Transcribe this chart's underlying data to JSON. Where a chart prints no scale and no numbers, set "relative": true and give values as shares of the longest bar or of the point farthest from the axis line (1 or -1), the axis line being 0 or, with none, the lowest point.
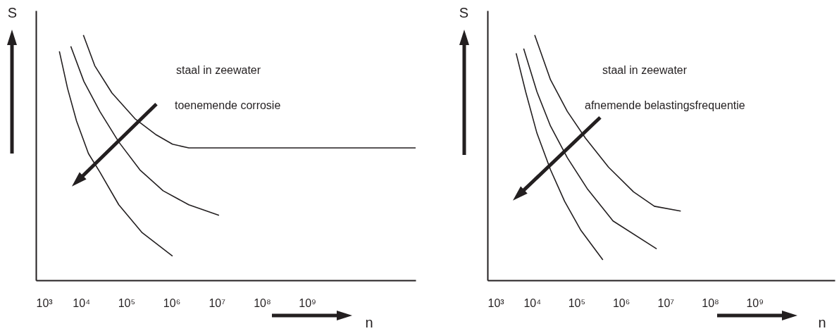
{
  "chart_data": [
    {
      "type": "line",
      "xlabel": "n",
      "ylabel": "S",
      "relative": true,
      "log": "x",
      "xlim": [
        1000,
        250000000000
      ],
      "xticks": [
        {
          "value": 1000,
          "label": "10³"
        },
        {
          "value": 10000,
          "label": "10⁴"
        },
        {
          "value": 100000,
          "label": "10⁵"
        },
        {
          "value": 1000000,
          "label": "10⁶"
        },
        {
          "value": 10000000,
          "label": "10⁷"
        },
        {
          "value": 100000000,
          "label": "10⁸"
        },
        {
          "value": 1000000000,
          "label": "10⁹"
        }
      ],
      "annotations": [
        "staal in zeewater",
        "toenemende corrosie"
      ],
      "series": [
        {
          "color": "#231f20",
          "x": [
            3300,
            5000,
            7900,
            14500,
            26000,
            68000,
            224000,
            1050000
          ],
          "values": [
            0.934,
            0.783,
            0.65,
            0.517,
            0.441,
            0.308,
            0.194,
            0.099
          ]
        },
        {
          "color": "#231f20",
          "x": [
            5900,
            11500,
            26000,
            68000,
            200000,
            650000,
            2400000,
            11200000
          ],
          "values": [
            0.954,
            0.811,
            0.688,
            0.564,
            0.45,
            0.365,
            0.308,
            0.265
          ]
        },
        {
          "color": "#231f20",
          "x": [
            11200,
            20000,
            48000,
            155000,
            460000,
            1050000,
            2400000,
            250000000000
          ],
          "values": [
            1.0,
            0.875,
            0.764,
            0.659,
            0.593,
            0.555,
            0.54,
            0.54
          ]
        }
      ]
    },
    {
      "type": "line",
      "xlabel": "n",
      "ylabel": "S",
      "relative": true,
      "log": "x",
      "xlim": [
        1000,
        63000000000
      ],
      "xticks": [
        {
          "value": 1000,
          "label": "10³"
        },
        {
          "value": 10000,
          "label": "10⁴"
        },
        {
          "value": 100000,
          "label": "10⁵"
        },
        {
          "value": 1000000,
          "label": "10⁶"
        },
        {
          "value": 10000000,
          "label": "10⁷"
        },
        {
          "value": 100000000,
          "label": "10⁸"
        },
        {
          "value": 1000000000,
          "label": "10⁹"
        }
      ],
      "annotations": [
        "staal in zeewater",
        "afnemende belastingsfrequentie"
      ],
      "series": [
        {
          "color": "#231f20",
          "x": [
            4400,
            7200,
            12900,
            26000,
            54000,
            126000,
            390000
          ],
          "values": [
            0.926,
            0.769,
            0.6,
            0.451,
            0.322,
            0.203,
            0.083
          ]
        },
        {
          "color": "#231f20",
          "x": [
            6500,
            12900,
            26000,
            62000,
            178000,
            660000,
            6300000
          ],
          "values": [
            0.945,
            0.769,
            0.629,
            0.5,
            0.371,
            0.242,
            0.128
          ]
        },
        {
          "color": "#231f20",
          "x": [
            11500,
            26000,
            62000,
            158000,
            525000,
            1900000,
            5600000,
            21900000
          ],
          "values": [
            1.0,
            0.818,
            0.689,
            0.58,
            0.461,
            0.361,
            0.302,
            0.282
          ]
        }
      ]
    }
  ]
}
